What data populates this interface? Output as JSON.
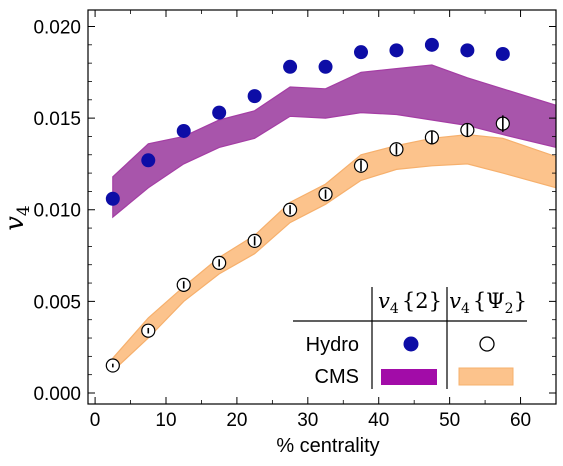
{
  "chart_data": {
    "type": "scatter",
    "xlabel": "% centrality",
    "ylabel": {
      "main": "v",
      "sub": "4"
    },
    "xlim": [
      -1,
      65
    ],
    "ylim": [
      -0.0006,
      0.0209
    ],
    "xticks": [
      0,
      10,
      20,
      30,
      40,
      50,
      60
    ],
    "yticks": [
      0.0,
      0.005,
      0.01,
      0.015,
      0.02
    ],
    "ytick_labels": [
      "0.000",
      "0.005",
      "0.010",
      "0.015",
      "0.020"
    ],
    "colors": {
      "hydro_v4_2": "#0d0da6",
      "cms_v4_2_band": "#a43ea4",
      "cms_v4_2_band_fill": "#a855ab",
      "cms_v4_psi2_band": "#f6b06d",
      "cms_v4_psi2_band_fill": "#fcc38c"
    },
    "series": [
      {
        "key": "hydro_v4_2",
        "style": "filled-circle",
        "points": [
          {
            "x": 2.5,
            "y": 0.0106
          },
          {
            "x": 7.5,
            "y": 0.0127
          },
          {
            "x": 12.5,
            "y": 0.0143
          },
          {
            "x": 17.5,
            "y": 0.0153
          },
          {
            "x": 22.5,
            "y": 0.0162
          },
          {
            "x": 27.5,
            "y": 0.0178
          },
          {
            "x": 32.5,
            "y": 0.0178
          },
          {
            "x": 37.5,
            "y": 0.0186
          },
          {
            "x": 42.5,
            "y": 0.0187
          },
          {
            "x": 47.5,
            "y": 0.019
          },
          {
            "x": 52.5,
            "y": 0.0187
          },
          {
            "x": 57.5,
            "y": 0.0185
          }
        ]
      },
      {
        "key": "hydro_v4_psi2",
        "style": "open-circle",
        "points": [
          {
            "x": 2.5,
            "y": 0.0015,
            "err": 0.0001
          },
          {
            "x": 7.5,
            "y": 0.0034,
            "err": 0.00015
          },
          {
            "x": 12.5,
            "y": 0.0059,
            "err": 0.0002
          },
          {
            "x": 17.5,
            "y": 0.0071,
            "err": 0.0002
          },
          {
            "x": 22.5,
            "y": 0.0083,
            "err": 0.00025
          },
          {
            "x": 27.5,
            "y": 0.01,
            "err": 0.00025
          },
          {
            "x": 32.5,
            "y": 0.01085,
            "err": 0.00025
          },
          {
            "x": 37.5,
            "y": 0.0124,
            "err": 0.0003
          },
          {
            "x": 42.5,
            "y": 0.0133,
            "err": 0.0003
          },
          {
            "x": 47.5,
            "y": 0.01395,
            "err": 0.00035
          },
          {
            "x": 52.5,
            "y": 0.01435,
            "err": 0.00035
          },
          {
            "x": 57.5,
            "y": 0.0147,
            "err": 0.00045
          }
        ]
      }
    ],
    "bands": [
      {
        "key": "cms_v4_2",
        "x": [
          2.5,
          7.5,
          12.5,
          17.5,
          22.5,
          27.5,
          32.5,
          37.5,
          42.5,
          47.5,
          52.5,
          57.5,
          65
        ],
        "lower": [
          0.0096,
          0.0112,
          0.0125,
          0.0134,
          0.0139,
          0.0151,
          0.015,
          0.0153,
          0.0152,
          0.0149,
          0.0146,
          0.0141,
          0.0134
        ],
        "upper": [
          0.0118,
          0.0136,
          0.014,
          0.0149,
          0.0154,
          0.0167,
          0.0166,
          0.0175,
          0.0177,
          0.0179,
          0.0172,
          0.0166,
          0.0157
        ]
      },
      {
        "key": "cms_v4_psi2",
        "x": [
          2.5,
          7.5,
          12.5,
          17.5,
          22.5,
          27.5,
          32.5,
          37.5,
          42.5,
          47.5,
          52.5,
          57.5,
          65
        ],
        "lower": [
          0.0012,
          0.003,
          0.005,
          0.0065,
          0.0076,
          0.0093,
          0.0103,
          0.0116,
          0.0122,
          0.0124,
          0.0125,
          0.012,
          0.0112
        ],
        "upper": [
          0.0019,
          0.0041,
          0.0058,
          0.0074,
          0.0086,
          0.0104,
          0.0114,
          0.013,
          0.0135,
          0.0139,
          0.0141,
          0.0139,
          0.0129
        ]
      }
    ],
    "legend": {
      "placement": "bottom-right",
      "column_headers": [
        {
          "main": "v",
          "sub": "4",
          "suffix": "{2}"
        },
        {
          "main": "v",
          "sub": "4",
          "suffix": "{Ψ",
          "suffix_sub": "2",
          "suffix_end": "}"
        }
      ],
      "rows": [
        {
          "label": "Hydro",
          "symbols": [
            "filled-circle",
            "open-circle"
          ]
        },
        {
          "label": "CMS",
          "symbols": [
            "band-purple",
            "band-orange"
          ]
        }
      ]
    }
  }
}
